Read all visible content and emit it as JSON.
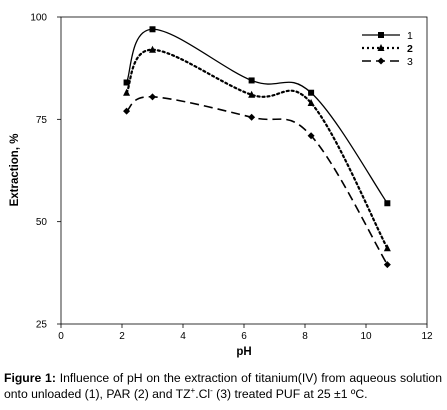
{
  "chart_data": {
    "type": "line",
    "xlabel": "pH",
    "ylabel": "Extraction, %",
    "xlim": [
      0,
      12
    ],
    "ylim": [
      25,
      100
    ],
    "xticks": [
      0,
      2,
      4,
      6,
      8,
      10,
      12
    ],
    "yticks": [
      25,
      50,
      75,
      100
    ],
    "grid": false,
    "legend_position": "top-right",
    "series": [
      {
        "name": "1",
        "marker": "square",
        "line_style": "solid",
        "x": [
          2.15,
          3.0,
          6.25,
          8.2,
          10.7
        ],
        "y": [
          84,
          97,
          84.5,
          81.5,
          54.5
        ]
      },
      {
        "name": "2",
        "marker": "triangle",
        "line_style": "dotted",
        "x": [
          2.15,
          3.0,
          6.25,
          8.2,
          10.7
        ],
        "y": [
          81.5,
          92,
          81,
          79,
          43.5
        ]
      },
      {
        "name": "3",
        "marker": "diamond",
        "line_style": "dashed",
        "x": [
          2.15,
          3.0,
          6.25,
          8.2,
          10.7
        ],
        "y": [
          77,
          80.5,
          75.5,
          71,
          39.5
        ]
      }
    ]
  },
  "caption": {
    "lead": "Figure 1:",
    "part1": " Influence of pH on the extraction of titanium(IV) from aqueous solution onto unloaded (1), PAR (2) and TZ",
    "sup1": "+",
    "part2": ".Cl",
    "sup2": "-",
    "part3": " (3) treated PUF at 25 ±1 ºC."
  }
}
